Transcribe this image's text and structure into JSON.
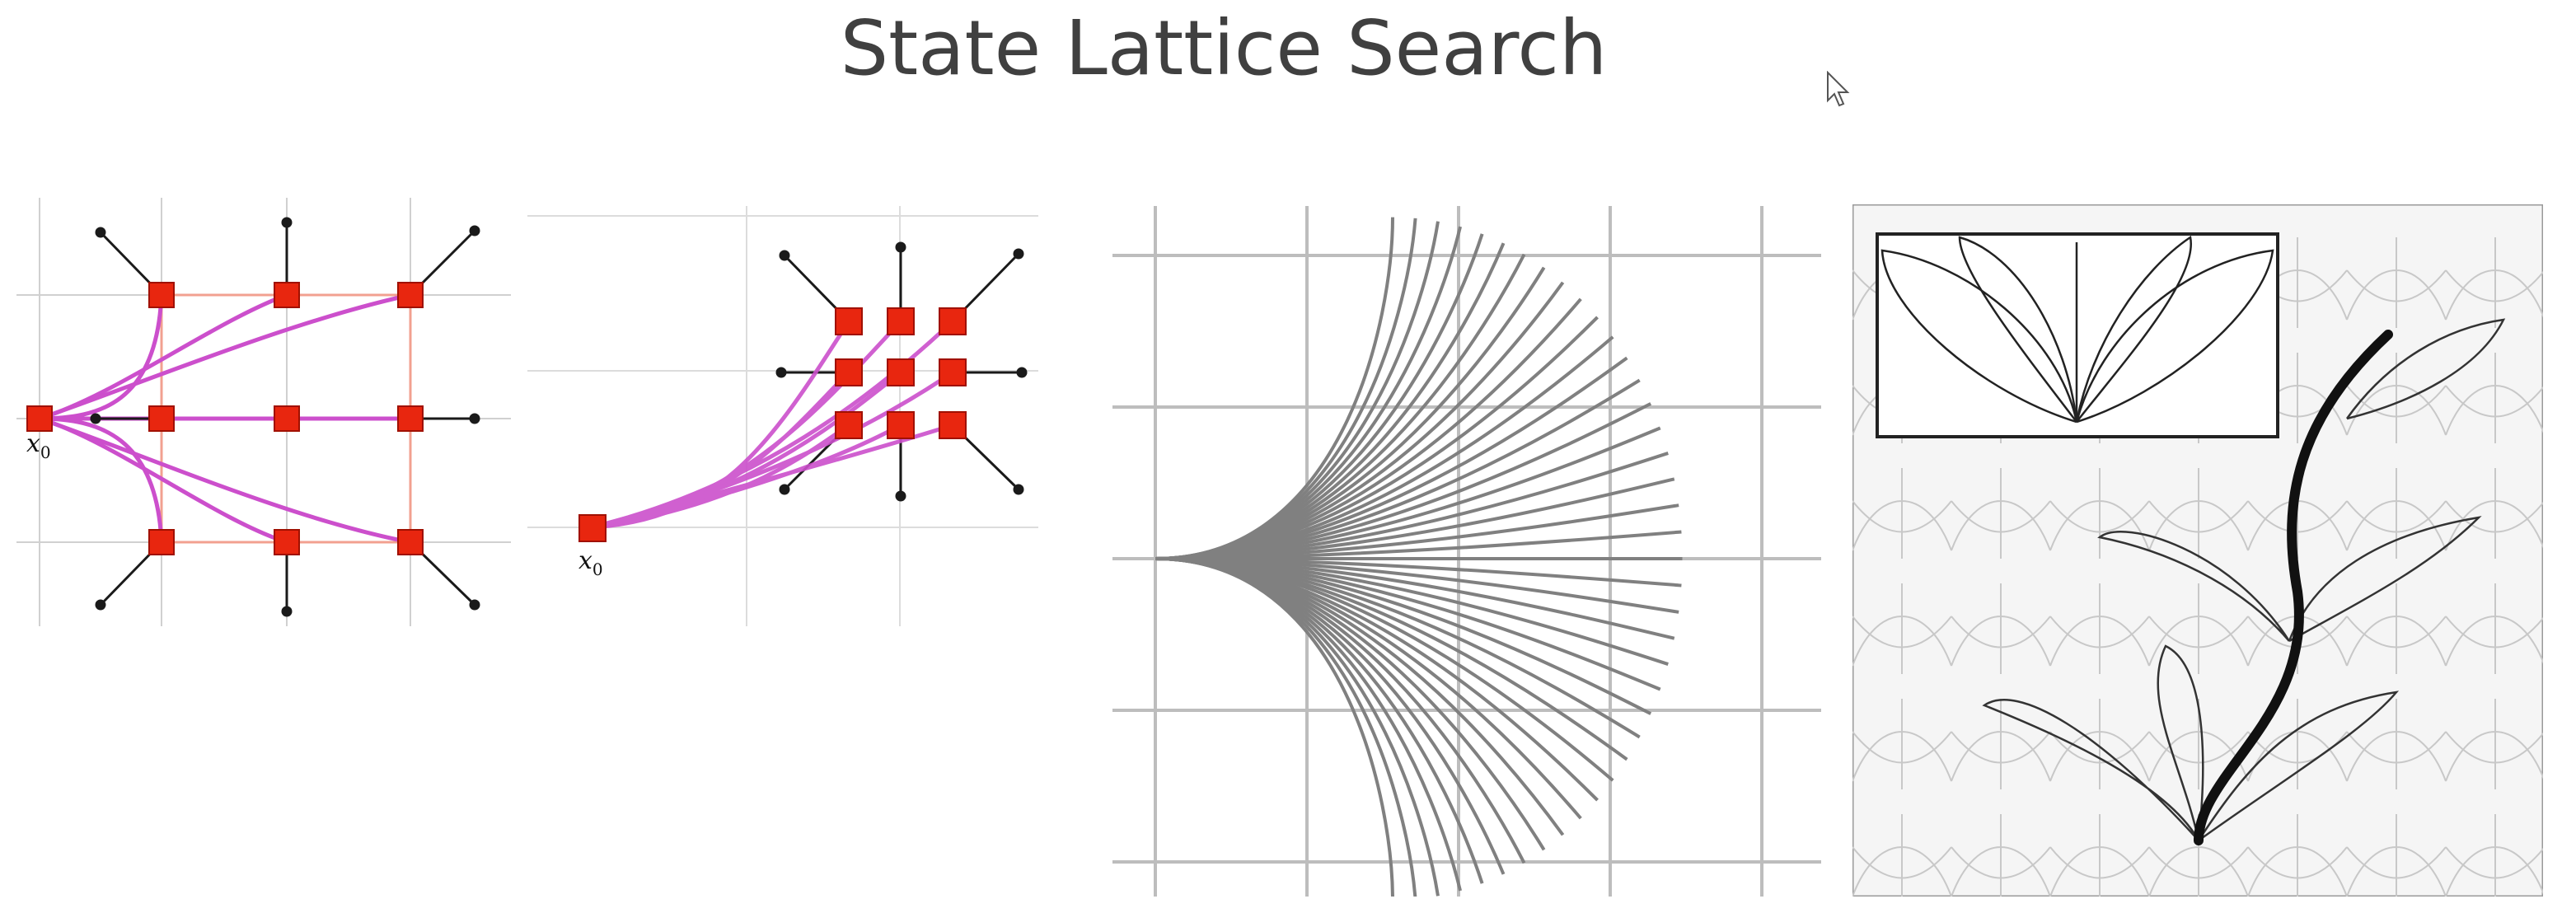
{
  "slide": {
    "title": "State Lattice Search"
  },
  "panels": {
    "lattice_left": {
      "label_main": "x",
      "label_sub": "0"
    },
    "lattice_right": {
      "label_main": "x",
      "label_sub": "0"
    }
  },
  "colors": {
    "node": "#e8260f",
    "path": "#cc4fcc",
    "fan": "#808080",
    "grid": "#bdbdbd",
    "arrow": "#1a1a1a"
  },
  "icons": {
    "cursor": "mouse-pointer-icon"
  }
}
